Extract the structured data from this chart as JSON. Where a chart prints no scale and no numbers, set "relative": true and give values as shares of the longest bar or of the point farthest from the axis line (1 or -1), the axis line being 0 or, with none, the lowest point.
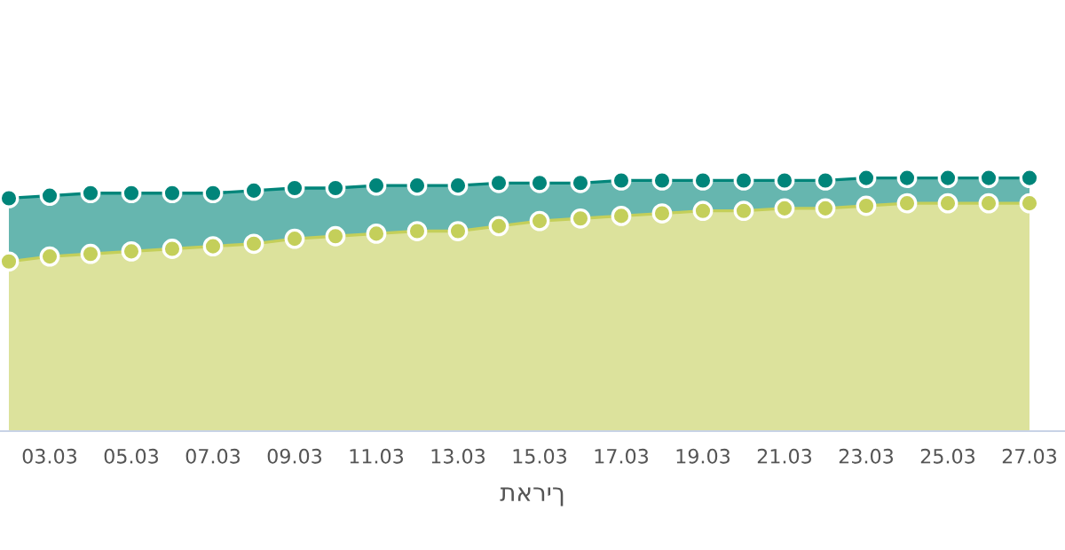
{
  "chart_data": {
    "type": "area",
    "relative": true,
    "xlabel": "תאריך",
    "marker": "circle",
    "categories": [
      null,
      "03.03",
      null,
      "05.03",
      null,
      "07.03",
      null,
      "09.03",
      null,
      "11.03",
      null,
      "13.03",
      null,
      "15.03",
      null,
      "17.03",
      null,
      "19.03",
      null,
      "21.03",
      null,
      "23.03",
      null,
      "25.03",
      null,
      "27.03"
    ],
    "series": [
      {
        "color": "#00857a",
        "values": [
          0.92,
          0.93,
          0.94,
          0.94,
          0.94,
          0.94,
          0.95,
          0.96,
          0.96,
          0.97,
          0.97,
          0.97,
          0.98,
          0.98,
          0.98,
          0.99,
          0.99,
          0.99,
          0.99,
          0.99,
          0.99,
          1.0,
          1.0,
          1.0,
          1.0,
          1.0
        ]
      },
      {
        "color": "#c4cf5a",
        "values": [
          0.67,
          0.69,
          0.7,
          0.71,
          0.72,
          0.73,
          0.74,
          0.76,
          0.77,
          0.78,
          0.79,
          0.79,
          0.81,
          0.83,
          0.84,
          0.85,
          0.86,
          0.87,
          0.87,
          0.88,
          0.88,
          0.89,
          0.9,
          0.9,
          0.9,
          0.9
        ]
      }
    ]
  }
}
